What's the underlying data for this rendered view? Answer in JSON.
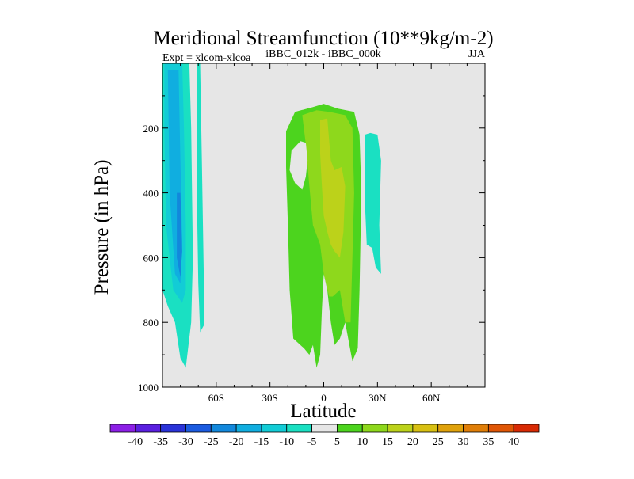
{
  "chart_data": {
    "type": "heatmap",
    "title": "Meridional Streamfunction (10**9kg/m-2)",
    "left_label": "Expt = xlcom-xlcoa",
    "center_label": "iBBC_012k - iBBC_000k",
    "right_label": "JJA",
    "xlabel": "Latitude",
    "ylabel": "Pressure (in hPa)",
    "xlim": [
      -90,
      90
    ],
    "ylim": [
      1000,
      0
    ],
    "background_color": "#e6e6e6",
    "x_ticks": [
      {
        "value": -60,
        "label": "60S"
      },
      {
        "value": -30,
        "label": "30S"
      },
      {
        "value": 0,
        "label": "0"
      },
      {
        "value": 30,
        "label": "30N"
      },
      {
        "value": 60,
        "label": "60N"
      }
    ],
    "y_ticks": [
      {
        "value": 200,
        "label": "200"
      },
      {
        "value": 400,
        "label": "400"
      },
      {
        "value": 600,
        "label": "600"
      },
      {
        "value": 800,
        "label": "800"
      },
      {
        "value": 1000,
        "label": "1000"
      }
    ],
    "colorbar": {
      "labels": [
        "-40",
        "-35",
        "-30",
        "-25",
        "-20",
        "-15",
        "-10",
        "-5",
        "5",
        "10",
        "15",
        "20",
        "25",
        "30",
        "35",
        "40"
      ],
      "colors": [
        "#8c1fe6",
        "#5a1fe0",
        "#2a33d8",
        "#1b5be0",
        "#1288dc",
        "#10aee0",
        "#12ccd6",
        "#1ae0c2",
        "#e6e6e6",
        "#4cd41e",
        "#8ed81c",
        "#bcd21a",
        "#d8c012",
        "#e0a20c",
        "#e07e08",
        "#e05606",
        "#d82a04"
      ]
    },
    "regions": [
      {
        "name": "sh-band-light",
        "color": "#1ae0c2",
        "points": [
          [
            -90,
            0
          ],
          [
            -75,
            0
          ],
          [
            -74,
            200
          ],
          [
            -73,
            600
          ],
          [
            -74,
            800
          ],
          [
            -77,
            940
          ],
          [
            -80,
            910
          ],
          [
            -83,
            800
          ],
          [
            -87,
            750
          ],
          [
            -90,
            700
          ]
        ]
      },
      {
        "name": "sh-band-mid",
        "color": "#12ccd6",
        "points": [
          [
            -89,
            0
          ],
          [
            -79,
            0
          ],
          [
            -78,
            200
          ],
          [
            -77,
            500
          ],
          [
            -77,
            700
          ],
          [
            -79,
            740
          ],
          [
            -84,
            700
          ],
          [
            -88,
            500
          ],
          [
            -89,
            200
          ]
        ]
      },
      {
        "name": "sh-band-core",
        "color": "#10aee0",
        "points": [
          [
            -87,
            20
          ],
          [
            -81,
            20
          ],
          [
            -80,
            300
          ],
          [
            -79,
            550
          ],
          [
            -80,
            680
          ],
          [
            -83,
            650
          ],
          [
            -86,
            400
          ]
        ]
      },
      {
        "name": "sh-band-deep",
        "color": "#1288dc",
        "points": [
          [
            -82,
            400
          ],
          [
            -80,
            400
          ],
          [
            -79,
            580
          ],
          [
            -80,
            660
          ],
          [
            -82,
            600
          ]
        ]
      },
      {
        "name": "sh-thin-strip",
        "color": "#1ae0c2",
        "points": [
          [
            -71,
            0
          ],
          [
            -69,
            0
          ],
          [
            -68,
            300
          ],
          [
            -67,
            640
          ],
          [
            -67,
            810
          ],
          [
            -69,
            830
          ],
          [
            -70,
            680
          ],
          [
            -71,
            350
          ]
        ]
      },
      {
        "name": "tropical-cell-outer",
        "color": "#4cd41e",
        "points": [
          [
            -21,
            210
          ],
          [
            -16,
            150
          ],
          [
            -6,
            135
          ],
          [
            0,
            125
          ],
          [
            8,
            140
          ],
          [
            17,
            150
          ],
          [
            20,
            220
          ],
          [
            21,
            400
          ],
          [
            20,
            700
          ],
          [
            19,
            880
          ],
          [
            16,
            920
          ],
          [
            12,
            800
          ],
          [
            9,
            850
          ],
          [
            6,
            870
          ],
          [
            4,
            800
          ],
          [
            2,
            700
          ],
          [
            0,
            650
          ],
          [
            -1,
            760
          ],
          [
            -2,
            900
          ],
          [
            -4,
            940
          ],
          [
            -6,
            870
          ],
          [
            -8,
            900
          ],
          [
            -11,
            880
          ],
          [
            -17,
            850
          ],
          [
            -19,
            700
          ],
          [
            -20,
            500
          ],
          [
            -21,
            320
          ]
        ]
      },
      {
        "name": "tropical-cell-inner",
        "color": "#8ed81c",
        "points": [
          [
            -12,
            160
          ],
          [
            -4,
            145
          ],
          [
            3,
            150
          ],
          [
            12,
            160
          ],
          [
            16,
            200
          ],
          [
            17,
            400
          ],
          [
            16,
            600
          ],
          [
            15,
            800
          ],
          [
            12,
            800
          ],
          [
            9,
            700
          ],
          [
            5,
            720
          ],
          [
            3,
            720
          ],
          [
            0,
            650
          ],
          [
            -2,
            560
          ],
          [
            -6,
            500
          ],
          [
            -8,
            380
          ],
          [
            -10,
            250
          ]
        ]
      },
      {
        "name": "tropical-cell-core",
        "color": "#bcd21a",
        "points": [
          [
            -2,
            175
          ],
          [
            2,
            170
          ],
          [
            4,
            300
          ],
          [
            6,
            330
          ],
          [
            10,
            320
          ],
          [
            12,
            380
          ],
          [
            11,
            520
          ],
          [
            9,
            600
          ],
          [
            6,
            580
          ],
          [
            4,
            560
          ],
          [
            2,
            520
          ],
          [
            0,
            470
          ],
          [
            -1,
            380
          ],
          [
            -2,
            280
          ]
        ]
      },
      {
        "name": "cell-gap",
        "color": "#e6e6e6",
        "points": [
          [
            -18,
            270
          ],
          [
            -13,
            240
          ],
          [
            -10,
            245
          ],
          [
            -9,
            300
          ],
          [
            -10,
            350
          ],
          [
            -12,
            390
          ],
          [
            -16,
            370
          ],
          [
            -19,
            330
          ]
        ]
      },
      {
        "name": "nh-strip",
        "color": "#1ae0c2",
        "points": [
          [
            23,
            220
          ],
          [
            26,
            215
          ],
          [
            30,
            220
          ],
          [
            32,
            300
          ],
          [
            31,
            500
          ],
          [
            32,
            650
          ],
          [
            29,
            630
          ],
          [
            27,
            570
          ],
          [
            24,
            560
          ],
          [
            23,
            430
          ],
          [
            23,
            280
          ]
        ]
      }
    ]
  }
}
